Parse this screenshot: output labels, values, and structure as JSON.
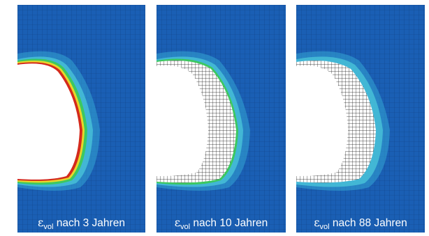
{
  "panels": [
    {
      "symbol": "ε",
      "subscript": "vol",
      "caption": "nach 3 Jahren"
    },
    {
      "symbol": "ε",
      "subscript": "vol",
      "caption": "nach 10 Jahren"
    },
    {
      "symbol": "ε",
      "subscript": "vol",
      "caption": "nach 88 Jahren"
    }
  ],
  "colors": {
    "mesh_background": "#1a5fb4",
    "mesh_line": "#0d3b7a",
    "contour_light": "#48c3d8",
    "contour_mid": "#35a4d4",
    "contour_green": "#3cc860",
    "contour_yellow": "#e6d62a",
    "contour_red": "#d42a1c",
    "lining_mesh": "#111111",
    "opening": "#ffffff",
    "caption_text": "#ffffff"
  }
}
